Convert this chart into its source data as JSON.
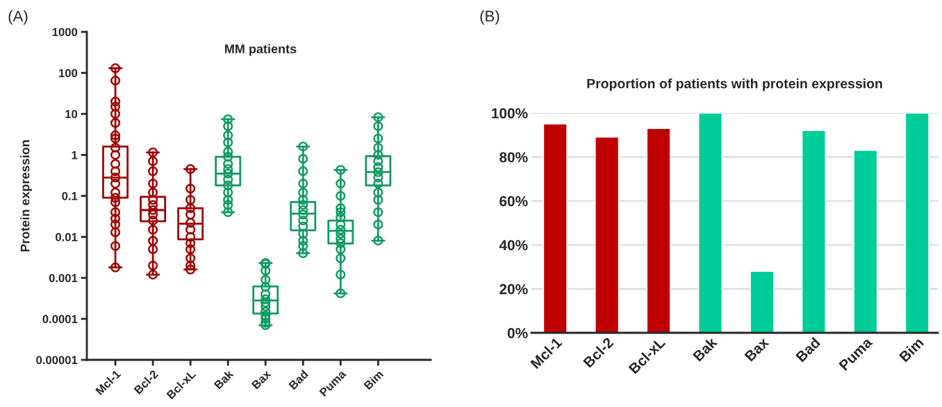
{
  "chart_data": [
    {
      "type": "box",
      "title": "MM patients",
      "ylabel": "Protein expression",
      "annotations": [
        "(A)"
      ],
      "categories": [
        "Mcl-1",
        "Bcl-2",
        "Bcl-xL",
        "Bak",
        "Bax",
        "Bad",
        "Puma",
        "Bim"
      ],
      "colors": [
        "#a00000",
        "#a00000",
        "#a00000",
        "#109a60",
        "#109a60",
        "#109a60",
        "#109a60",
        "#109a60"
      ],
      "boxes": [
        {
          "low": 0.0018,
          "q1": 0.09,
          "median": 0.28,
          "q3": 1.6,
          "high": 130
        },
        {
          "low": 0.0012,
          "q1": 0.024,
          "median": 0.045,
          "q3": 0.095,
          "high": 1.15
        },
        {
          "low": 0.0016,
          "q1": 0.0087,
          "median": 0.021,
          "q3": 0.05,
          "high": 0.45
        },
        {
          "low": 0.04,
          "q1": 0.18,
          "median": 0.35,
          "q3": 0.9,
          "high": 7.4
        },
        {
          "low": 7e-05,
          "q1": 0.000135,
          "median": 0.00028,
          "q3": 0.00062,
          "high": 0.0023
        },
        {
          "low": 0.004,
          "q1": 0.0145,
          "median": 0.037,
          "q3": 0.071,
          "high": 1.6
        },
        {
          "low": 0.00042,
          "q1": 0.0069,
          "median": 0.014,
          "q3": 0.025,
          "high": 0.43
        },
        {
          "low": 0.0081,
          "q1": 0.18,
          "median": 0.38,
          "q3": 0.93,
          "high": 8.3
        }
      ],
      "series": [
        {
          "type": "scatter",
          "color": "#a00000",
          "x": [
            "Mcl-1",
            "Mcl-1",
            "Mcl-1",
            "Mcl-1",
            "Mcl-1",
            "Mcl-1",
            "Mcl-1",
            "Mcl-1",
            "Mcl-1",
            "Mcl-1",
            "Mcl-1",
            "Mcl-1",
            "Mcl-1",
            "Mcl-1",
            "Mcl-1",
            "Mcl-1",
            "Mcl-1",
            "Mcl-1",
            "Mcl-1",
            "Mcl-1",
            "Mcl-1",
            "Mcl-1",
            "Mcl-1",
            "Bcl-2",
            "Bcl-2",
            "Bcl-2",
            "Bcl-2",
            "Bcl-2",
            "Bcl-2",
            "Bcl-2",
            "Bcl-2",
            "Bcl-2",
            "Bcl-2",
            "Bcl-2",
            "Bcl-2",
            "Bcl-2",
            "Bcl-2",
            "Bcl-2",
            "Bcl-xL",
            "Bcl-xL",
            "Bcl-xL",
            "Bcl-xL",
            "Bcl-xL",
            "Bcl-xL",
            "Bcl-xL",
            "Bcl-xL",
            "Bcl-xL",
            "Bcl-xL",
            "Bcl-xL",
            "Bcl-xL",
            "Bcl-xL"
          ],
          "values": [
            130,
            65,
            20,
            15,
            10,
            6,
            3,
            2.5,
            1.5,
            1,
            0.6,
            0.4,
            0.28,
            0.2,
            0.12,
            0.09,
            0.07,
            0.04,
            0.028,
            0.02,
            0.013,
            0.006,
            0.0018,
            1.15,
            0.7,
            0.4,
            0.2,
            0.12,
            0.08,
            0.06,
            0.045,
            0.035,
            0.025,
            0.015,
            0.008,
            0.005,
            0.002,
            0.0012,
            0.45,
            0.15,
            0.08,
            0.05,
            0.035,
            0.022,
            0.015,
            0.01,
            0.007,
            0.005,
            0.003,
            0.002,
            0.0016
          ]
        },
        {
          "type": "scatter",
          "color": "#109a60",
          "x": [
            "Bak",
            "Bak",
            "Bak",
            "Bak",
            "Bak",
            "Bak",
            "Bak",
            "Bak",
            "Bak",
            "Bak",
            "Bak",
            "Bak",
            "Bak",
            "Bak",
            "Bak",
            "Bax",
            "Bax",
            "Bax",
            "Bax",
            "Bax",
            "Bax",
            "Bax",
            "Bax",
            "Bax",
            "Bax",
            "Bax",
            "Bax",
            "Bax",
            "Bax",
            "Bad",
            "Bad",
            "Bad",
            "Bad",
            "Bad",
            "Bad",
            "Bad",
            "Bad",
            "Bad",
            "Bad",
            "Bad",
            "Bad",
            "Bad",
            "Bad",
            "Bad",
            "Puma",
            "Puma",
            "Puma",
            "Puma",
            "Puma",
            "Puma",
            "Puma",
            "Puma",
            "Puma",
            "Puma",
            "Puma",
            "Puma",
            "Puma",
            "Puma",
            "Puma",
            "Bim",
            "Bim",
            "Bim",
            "Bim",
            "Bim",
            "Bim",
            "Bim",
            "Bim",
            "Bim",
            "Bim",
            "Bim",
            "Bim",
            "Bim",
            "Bim",
            "Bim"
          ],
          "values": [
            7.4,
            5,
            3,
            2,
            1.2,
            0.9,
            0.6,
            0.45,
            0.35,
            0.25,
            0.18,
            0.12,
            0.08,
            0.06,
            0.04,
            0.0023,
            0.0022,
            0.0015,
            0.0009,
            0.0006,
            0.0004,
            0.0003,
            0.00025,
            0.0002,
            0.00015,
            0.00012,
            0.0001,
            8e-05,
            7e-05,
            1.6,
            0.8,
            0.4,
            0.2,
            0.12,
            0.08,
            0.06,
            0.045,
            0.035,
            0.025,
            0.018,
            0.012,
            0.008,
            0.006,
            0.004,
            0.43,
            0.2,
            0.1,
            0.05,
            0.04,
            0.03,
            0.02,
            0.015,
            0.012,
            0.009,
            0.007,
            0.005,
            0.003,
            0.0012,
            0.00042,
            8.3,
            5,
            2.5,
            1.5,
            1,
            0.7,
            0.5,
            0.38,
            0.28,
            0.2,
            0.12,
            0.08,
            0.04,
            0.02,
            0.0081
          ]
        }
      ],
      "log": "y",
      "ylim": [
        1e-05,
        1000
      ],
      "yticks": [
        {
          "value": 1e-05,
          "label": "0.00001"
        },
        0.0001,
        0.001,
        0.01,
        0.1,
        1,
        10,
        100,
        1000
      ],
      "marker": "circle"
    },
    {
      "type": "bar",
      "title": "Proportion of patients with protein expression",
      "annotations": [
        "(B)"
      ],
      "categories": [
        "Mcl-1",
        "Bcl-2",
        "Bcl-xL",
        "Bak",
        "Bax",
        "Bad",
        "Puma",
        "Bim"
      ],
      "values": [
        95,
        89,
        93,
        100,
        28,
        92,
        83,
        100
      ],
      "colors": [
        "#c00000",
        "#c00000",
        "#c00000",
        "#00cc99",
        "#00cc99",
        "#00cc99",
        "#00cc99",
        "#00cc99"
      ],
      "ylim": [
        0,
        100
      ],
      "yticks": [
        {
          "value": 0,
          "label": "0%"
        },
        {
          "value": 20,
          "label": "20%"
        },
        {
          "value": 40,
          "label": "40%"
        },
        {
          "value": 60,
          "label": "60%"
        },
        {
          "value": 80,
          "label": "80%"
        },
        {
          "value": 100,
          "label": "100%"
        }
      ],
      "grid": "y"
    }
  ]
}
